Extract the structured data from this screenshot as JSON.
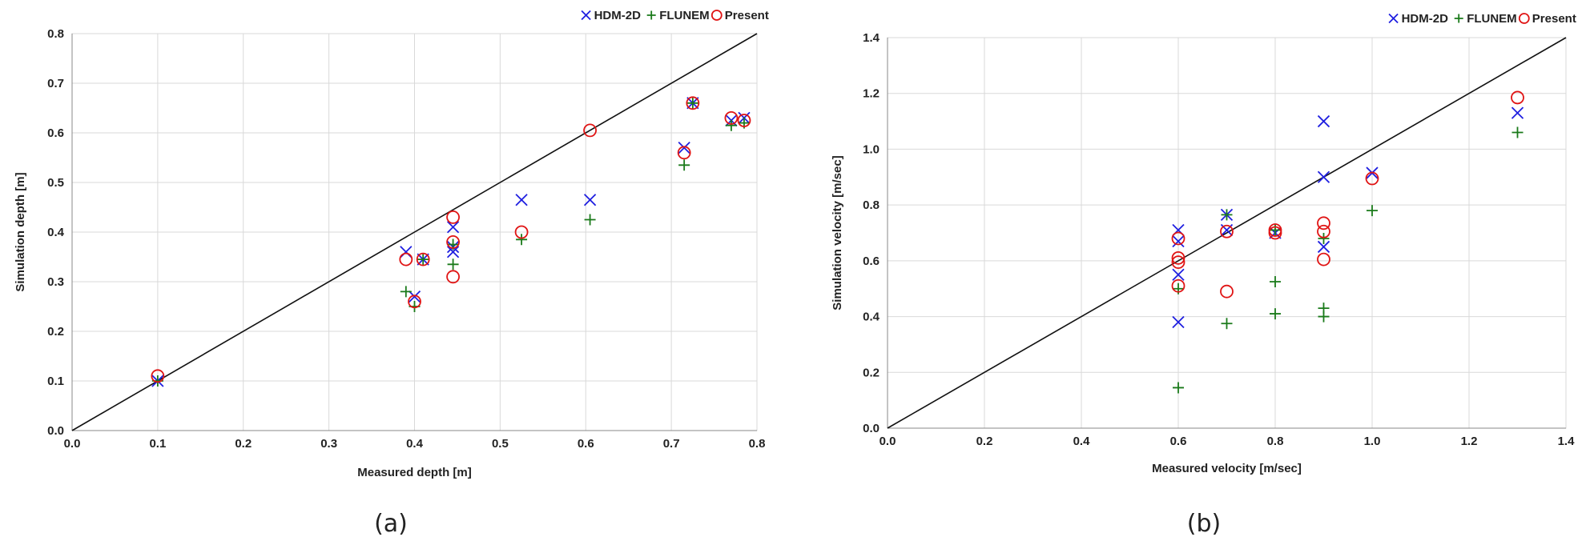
{
  "colors": {
    "hdm": "#1f1fe0",
    "flunem": "#1a7a1a",
    "present": "#e01414"
  },
  "legend": {
    "items": [
      {
        "key": "hdm",
        "marker": "x",
        "label": "HDM-2D"
      },
      {
        "key": "flunem",
        "marker": "plus",
        "label": "FLUNEM"
      },
      {
        "key": "present",
        "marker": "circle",
        "label": "Present"
      }
    ]
  },
  "chart_data": [
    {
      "type": "scatter",
      "caption": "(a)",
      "xlabel": "Measured depth [m]",
      "ylabel": "Simulation depth [m]",
      "xlim": [
        0,
        0.8
      ],
      "ylim": [
        0,
        0.8
      ],
      "xticks": [
        0,
        0.1,
        0.2,
        0.3,
        0.4,
        0.5,
        0.6,
        0.7,
        0.8
      ],
      "yticks": [
        0,
        0.1,
        0.2,
        0.3,
        0.4,
        0.5,
        0.6,
        0.7,
        0.8
      ],
      "tick_labels_x": [
        "0.0",
        "0.1",
        "0.2",
        "0.3",
        "0.4",
        "0.5",
        "0.6",
        "0.7",
        "0.8"
      ],
      "tick_labels_y": [
        "0.0",
        "0.1",
        "0.2",
        "0.3",
        "0.4",
        "0.5",
        "0.6",
        "0.7",
        "0.8"
      ],
      "grid": true,
      "reference_line": "y = x",
      "legend_position": "top-right",
      "series": [
        {
          "name": "HDM-2D",
          "key": "hdm",
          "marker": "x",
          "points": [
            [
              0.1,
              0.1
            ],
            [
              0.39,
              0.36
            ],
            [
              0.4,
              0.27
            ],
            [
              0.41,
              0.345
            ],
            [
              0.445,
              0.41
            ],
            [
              0.445,
              0.37
            ],
            [
              0.445,
              0.36
            ],
            [
              0.525,
              0.465
            ],
            [
              0.605,
              0.465
            ],
            [
              0.715,
              0.57
            ],
            [
              0.725,
              0.66
            ],
            [
              0.77,
              0.625
            ],
            [
              0.785,
              0.63
            ]
          ]
        },
        {
          "name": "FLUNEM",
          "key": "flunem",
          "marker": "plus",
          "points": [
            [
              0.1,
              0.1
            ],
            [
              0.39,
              0.28
            ],
            [
              0.4,
              0.25
            ],
            [
              0.41,
              0.345
            ],
            [
              0.445,
              0.375
            ],
            [
              0.445,
              0.335
            ],
            [
              0.525,
              0.385
            ],
            [
              0.605,
              0.425
            ],
            [
              0.715,
              0.535
            ],
            [
              0.725,
              0.66
            ],
            [
              0.77,
              0.615
            ],
            [
              0.785,
              0.62
            ]
          ]
        },
        {
          "name": "Present",
          "key": "present",
          "marker": "circle",
          "points": [
            [
              0.1,
              0.11
            ],
            [
              0.39,
              0.345
            ],
            [
              0.4,
              0.26
            ],
            [
              0.41,
              0.345
            ],
            [
              0.445,
              0.43
            ],
            [
              0.445,
              0.38
            ],
            [
              0.445,
              0.31
            ],
            [
              0.525,
              0.4
            ],
            [
              0.605,
              0.605
            ],
            [
              0.715,
              0.56
            ],
            [
              0.725,
              0.66
            ],
            [
              0.77,
              0.63
            ],
            [
              0.785,
              0.625
            ]
          ]
        }
      ]
    },
    {
      "type": "scatter",
      "caption": "(b)",
      "xlabel": "Measured velocity [m/sec]",
      "ylabel": "Simulation velocity [m/sec]",
      "xlim": [
        0,
        1.4
      ],
      "ylim": [
        0,
        1.4
      ],
      "xticks": [
        0,
        0.2,
        0.4,
        0.6,
        0.8,
        1.0,
        1.2,
        1.4
      ],
      "yticks": [
        0,
        0.2,
        0.4,
        0.6,
        0.8,
        1.0,
        1.2,
        1.4
      ],
      "tick_labels_x": [
        "0.0",
        "0.2",
        "0.4",
        "0.6",
        "0.8",
        "1.0",
        "1.2",
        "1.4"
      ],
      "tick_labels_y": [
        "0.0",
        "0.2",
        "0.4",
        "0.6",
        "0.8",
        "1.0",
        "1.2",
        "1.4"
      ],
      "grid": true,
      "reference_line": "y = x",
      "legend_position": "top-right",
      "series": [
        {
          "name": "HDM-2D",
          "key": "hdm",
          "marker": "x",
          "points": [
            [
              0.6,
              0.71
            ],
            [
              0.6,
              0.67
            ],
            [
              0.6,
              0.55
            ],
            [
              0.6,
              0.38
            ],
            [
              0.7,
              0.765
            ],
            [
              0.7,
              0.71
            ],
            [
              0.8,
              0.7
            ],
            [
              0.9,
              1.1
            ],
            [
              0.9,
              0.9
            ],
            [
              0.9,
              0.65
            ],
            [
              1.0,
              0.915
            ],
            [
              1.3,
              1.13
            ]
          ]
        },
        {
          "name": "FLUNEM",
          "key": "flunem",
          "marker": "plus",
          "points": [
            [
              0.6,
              0.5
            ],
            [
              0.6,
              0.145
            ],
            [
              0.7,
              0.765
            ],
            [
              0.7,
              0.375
            ],
            [
              0.8,
              0.525
            ],
            [
              0.8,
              0.41
            ],
            [
              0.8,
              0.71
            ],
            [
              0.9,
              0.68
            ],
            [
              0.9,
              0.43
            ],
            [
              0.9,
              0.4
            ],
            [
              1.0,
              0.78
            ],
            [
              1.3,
              1.06
            ]
          ]
        },
        {
          "name": "Present",
          "key": "present",
          "marker": "circle",
          "points": [
            [
              0.6,
              0.68
            ],
            [
              0.6,
              0.61
            ],
            [
              0.6,
              0.595
            ],
            [
              0.6,
              0.51
            ],
            [
              0.7,
              0.705
            ],
            [
              0.7,
              0.49
            ],
            [
              0.8,
              0.71
            ],
            [
              0.8,
              0.7
            ],
            [
              0.9,
              0.735
            ],
            [
              0.9,
              0.705
            ],
            [
              0.9,
              0.605
            ],
            [
              1.0,
              0.895
            ],
            [
              1.3,
              1.185
            ]
          ]
        }
      ]
    }
  ]
}
